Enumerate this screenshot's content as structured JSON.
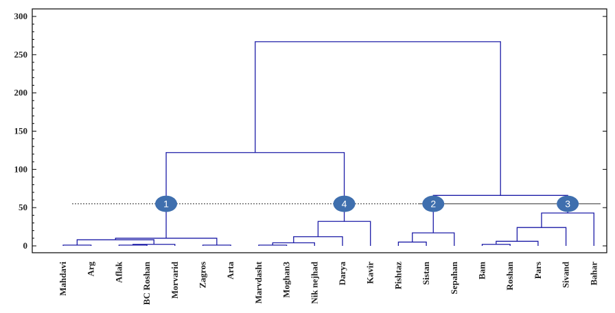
{
  "chart_data": {
    "type": "dendrogram",
    "ylim": [
      0,
      300
    ],
    "yticks": [
      0,
      50,
      100,
      150,
      200,
      250,
      300
    ],
    "leaves": [
      "Mahdavi",
      "Arg",
      "Aflak",
      "BC Roshan",
      "Morvarid",
      "Zagros",
      "Arta",
      "Marvdasht",
      "Moghan3",
      "Nik nejhad",
      "Darya",
      "Kavir",
      "Pishtaz",
      "Sistan",
      "Sepahan",
      "Bam",
      "Roshan",
      "Pars",
      "Sivand",
      "Bahar"
    ],
    "merges": [
      {
        "left": "L:0",
        "right": "L:1",
        "height": 1
      },
      {
        "left": "L:2",
        "right": "L:3",
        "height": 1
      },
      {
        "left": "L:5",
        "right": "L:6",
        "height": 1
      },
      {
        "left": "N:1",
        "right": "L:4",
        "height": 2
      },
      {
        "left": "N:0",
        "right": "N:3",
        "height": 8
      },
      {
        "left": "N:4",
        "right": "N:2",
        "height": 10
      },
      {
        "left": "L:7",
        "right": "L:8",
        "height": 1
      },
      {
        "left": "N:6",
        "right": "L:9",
        "height": 4
      },
      {
        "left": "N:7",
        "right": "L:10",
        "height": 12
      },
      {
        "left": "N:8",
        "right": "L:11",
        "height": 32
      },
      {
        "left": "N:5",
        "right": "N:9",
        "height": 122
      },
      {
        "left": "L:12",
        "right": "L:13",
        "height": 5
      },
      {
        "left": "N:11",
        "right": "L:14",
        "height": 17
      },
      {
        "left": "L:15",
        "right": "L:16",
        "height": 2
      },
      {
        "left": "N:13",
        "right": "L:17",
        "height": 6
      },
      {
        "left": "N:14",
        "right": "L:18",
        "height": 24
      },
      {
        "left": "N:15",
        "right": "L:19",
        "height": 43
      },
      {
        "left": "N:12",
        "right": "N:16",
        "height": 66
      },
      {
        "left": "N:10",
        "right": "N:17",
        "height": 267
      }
    ],
    "cut_height": 55,
    "clusters": [
      {
        "label": "1",
        "node": "N:5"
      },
      {
        "label": "4",
        "node": "N:9"
      },
      {
        "label": "2",
        "node": "N:12"
      },
      {
        "label": "3",
        "node": "N:16"
      }
    ],
    "colors": {
      "link": "#1a1aa6",
      "axis": "#000000",
      "cut": "#333333",
      "marker": "#3f6fae"
    }
  }
}
